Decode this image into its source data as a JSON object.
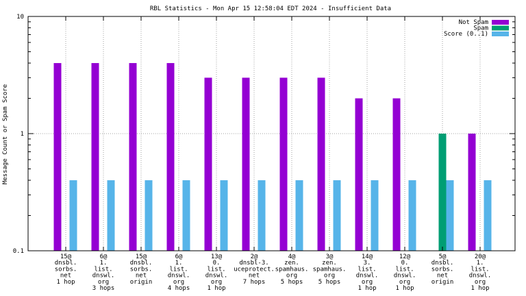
{
  "chart_data": {
    "type": "bar",
    "title": "RBL Statistics - Mon Apr 15 12:58:04 EDT 2024 - Insufficient Data",
    "xlabel": "",
    "ylabel": "Message Count or Spam Score",
    "yscale": "log",
    "ylim": [
      0.1,
      10
    ],
    "yticks": [
      "0.1",
      "1",
      "10"
    ],
    "grid": true,
    "legend_position": "top-right",
    "categories": [
      [
        "15@",
        "dnsbl.",
        "sorbs.",
        "net",
        "1 hop"
      ],
      [
        "6@",
        "1.",
        "list.",
        "dnswl.",
        "org",
        "3 hops"
      ],
      [
        "15@",
        "dnsbl.",
        "sorbs.",
        "net",
        "origin"
      ],
      [
        "6@",
        "1.",
        "list.",
        "dnswl.",
        "org",
        "4 hops"
      ],
      [
        "13@",
        "0.",
        "list.",
        "dnswl.",
        "org",
        "1 hop"
      ],
      [
        "2@",
        "dnsbl-3.",
        "uceprotect.",
        "net",
        "7 hops"
      ],
      [
        "4@",
        "zen.",
        "spamhaus.",
        "org",
        "5 hops"
      ],
      [
        "3@",
        "zen.",
        "spamhaus.",
        "org",
        "5 hops"
      ],
      [
        "14@",
        "3.",
        "list.",
        "dnswl.",
        "org",
        "1 hop"
      ],
      [
        "12@",
        "0.",
        "list.",
        "dnswl.",
        "org",
        "1 hop"
      ],
      [
        "5@",
        "dnsbl.",
        "sorbs.",
        "net",
        "origin"
      ],
      [
        "20@",
        "1.",
        "list.",
        "dnswl.",
        "org",
        "1 hop"
      ]
    ],
    "series": [
      {
        "name": "Not Spam",
        "color": "#9400d3",
        "values": [
          4,
          4,
          4,
          4,
          3,
          3,
          3,
          3,
          2,
          2,
          null,
          1
        ]
      },
      {
        "name": "Spam",
        "color": "#009e73",
        "values": [
          null,
          null,
          null,
          null,
          null,
          null,
          null,
          null,
          null,
          null,
          1,
          null
        ]
      },
      {
        "name": "Score (0..1)",
        "color": "#56b4e9",
        "values": [
          0.4,
          0.4,
          0.4,
          0.4,
          0.4,
          0.4,
          0.4,
          0.4,
          0.4,
          0.4,
          0.4,
          0.4
        ]
      }
    ]
  }
}
